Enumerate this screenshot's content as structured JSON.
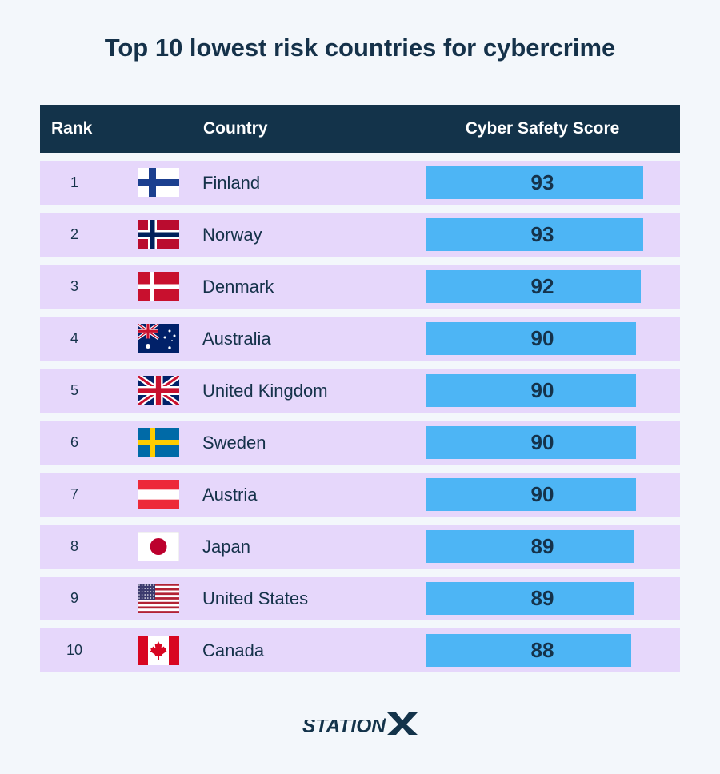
{
  "title": "Top 10 lowest risk countries for cybercrime",
  "header": {
    "rank": "Rank",
    "country": "Country",
    "score": "Cyber Safety Score"
  },
  "colors": {
    "header_bg": "#13334a",
    "row_bg": "#e6d7fb",
    "bar": "#4db5f5",
    "text": "#15324a"
  },
  "brand": {
    "logo_text": "STATIONX"
  },
  "chart_data": {
    "type": "bar",
    "categories": [
      "Finland",
      "Norway",
      "Denmark",
      "Australia",
      "United Kingdom",
      "Sweden",
      "Austria",
      "Japan",
      "United States",
      "Canada"
    ],
    "values": [
      93,
      93,
      92,
      90,
      90,
      90,
      90,
      89,
      89,
      88
    ],
    "title": "Top 10 lowest risk countries for cybercrime",
    "ylabel": "Cyber Safety Score",
    "rows": [
      {
        "rank": "1",
        "country": "Finland",
        "flag": "finland-flag-icon",
        "score": 93
      },
      {
        "rank": "2",
        "country": "Norway",
        "flag": "norway-flag-icon",
        "score": 93
      },
      {
        "rank": "3",
        "country": "Denmark",
        "flag": "denmark-flag-icon",
        "score": 92
      },
      {
        "rank": "4",
        "country": "Australia",
        "flag": "australia-flag-icon",
        "score": 90
      },
      {
        "rank": "5",
        "country": "United Kingdom",
        "flag": "uk-flag-icon",
        "score": 90
      },
      {
        "rank": "6",
        "country": "Sweden",
        "flag": "sweden-flag-icon",
        "score": 90
      },
      {
        "rank": "7",
        "country": "Austria",
        "flag": "austria-flag-icon",
        "score": 90
      },
      {
        "rank": "8",
        "country": "Japan",
        "flag": "japan-flag-icon",
        "score": 89
      },
      {
        "rank": "9",
        "country": "United States",
        "flag": "usa-flag-icon",
        "score": 89
      },
      {
        "rank": "10",
        "country": "Canada",
        "flag": "canada-flag-icon",
        "score": 88
      }
    ]
  }
}
